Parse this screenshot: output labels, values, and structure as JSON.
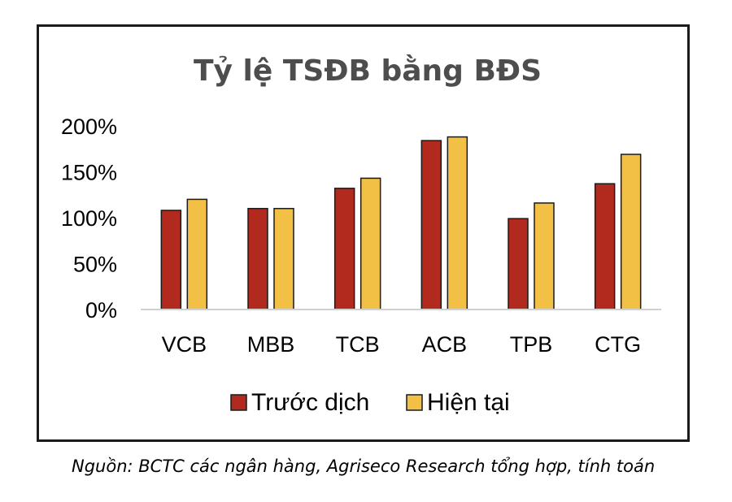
{
  "chart_data": {
    "type": "bar",
    "title": "Tỷ lệ TSĐB bằng BĐS",
    "categories": [
      "VCB",
      "MBB",
      "TCB",
      "ACB",
      "TPB",
      "CTG"
    ],
    "series": [
      {
        "name": "Trước dịch",
        "color": "#b22a1e",
        "values": [
          108,
          110,
          132,
          184,
          99,
          137
        ]
      },
      {
        "name": "Hiện tại",
        "color": "#f2c044",
        "values": [
          120,
          110,
          143,
          188,
          116,
          169
        ]
      }
    ],
    "ylim": [
      0,
      200
    ],
    "yticks": [
      0,
      50,
      100,
      150,
      200
    ],
    "ytick_labels": [
      "0%",
      "50%",
      "100%",
      "150%",
      "200%"
    ],
    "xlabel": "",
    "ylabel": "",
    "grid": false,
    "legend_position": "bottom"
  },
  "source_note": "Nguồn: BCTC các ngân hàng, Agriseco Research tổng hợp, tính toán"
}
